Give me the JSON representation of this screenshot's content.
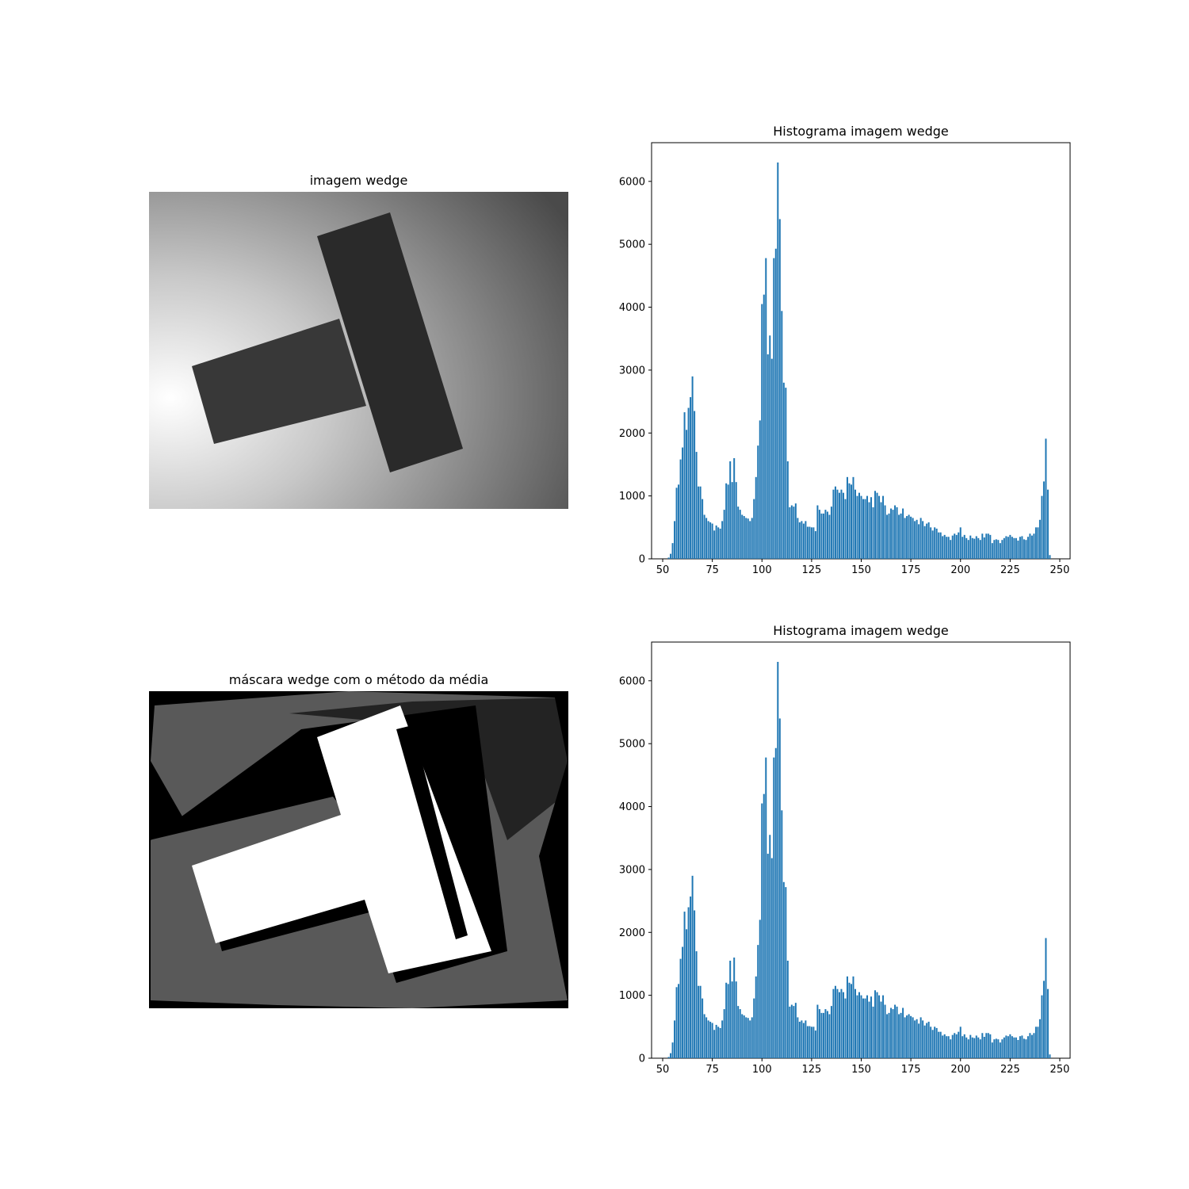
{
  "chart_data": [
    {
      "type": "image",
      "title": "imagem wedge"
    },
    {
      "type": "bar",
      "title": "Histograma imagem wedge",
      "color": "#1f77b4",
      "x": [
        53,
        54,
        55,
        56,
        57,
        58,
        59,
        60,
        61,
        62,
        63,
        64,
        65,
        66,
        67,
        68,
        69,
        70,
        71,
        72,
        73,
        74,
        75,
        76,
        77,
        78,
        79,
        80,
        81,
        82,
        83,
        84,
        85,
        86,
        87,
        88,
        89,
        90,
        91,
        92,
        93,
        94,
        95,
        96,
        97,
        98,
        99,
        100,
        101,
        102,
        103,
        104,
        105,
        106,
        107,
        108,
        109,
        110,
        111,
        112,
        113,
        114,
        115,
        116,
        117,
        118,
        119,
        120,
        121,
        122,
        123,
        124,
        125,
        126,
        127,
        128,
        129,
        130,
        131,
        132,
        133,
        134,
        135,
        136,
        137,
        138,
        139,
        140,
        141,
        142,
        143,
        144,
        145,
        146,
        147,
        148,
        149,
        150,
        151,
        152,
        153,
        154,
        155,
        156,
        157,
        158,
        159,
        160,
        161,
        162,
        163,
        164,
        165,
        166,
        167,
        168,
        169,
        170,
        171,
        172,
        173,
        174,
        175,
        176,
        177,
        178,
        179,
        180,
        181,
        182,
        183,
        184,
        185,
        186,
        187,
        188,
        189,
        190,
        191,
        192,
        193,
        194,
        195,
        196,
        197,
        198,
        199,
        200,
        201,
        202,
        203,
        204,
        205,
        206,
        207,
        208,
        209,
        210,
        211,
        212,
        213,
        214,
        215,
        216,
        217,
        218,
        219,
        220,
        221,
        222,
        223,
        224,
        225,
        226,
        227,
        228,
        229,
        230,
        231,
        232,
        233,
        234,
        235,
        236,
        237,
        238,
        239,
        240,
        241,
        242,
        243,
        244,
        245
      ],
      "values": [
        20,
        80,
        250,
        600,
        1130,
        1180,
        1580,
        1770,
        2330,
        2050,
        2400,
        2570,
        2900,
        2350,
        1700,
        1150,
        1150,
        950,
        700,
        650,
        600,
        580,
        560,
        450,
        530,
        500,
        480,
        600,
        780,
        1200,
        1180,
        1550,
        1220,
        1600,
        1220,
        830,
        780,
        700,
        680,
        650,
        640,
        600,
        650,
        950,
        1300,
        1800,
        2200,
        4050,
        4200,
        4780,
        3250,
        3550,
        3180,
        4780,
        4930,
        6300,
        5400,
        3940,
        2800,
        2720,
        1550,
        820,
        850,
        830,
        880,
        650,
        580,
        600,
        560,
        600,
        510,
        510,
        500,
        500,
        440,
        850,
        780,
        720,
        720,
        780,
        750,
        700,
        830,
        1100,
        1150,
        1100,
        1050,
        1100,
        1050,
        950,
        1300,
        1200,
        1180,
        1300,
        1100,
        1000,
        1050,
        1000,
        950,
        950,
        1000,
        900,
        980,
        820,
        1080,
        1050,
        1000,
        900,
        1000,
        850,
        700,
        720,
        800,
        780,
        850,
        820,
        700,
        720,
        800,
        650,
        680,
        700,
        670,
        650,
        600,
        620,
        550,
        650,
        600,
        520,
        560,
        580,
        500,
        450,
        500,
        480,
        420,
        420,
        360,
        380,
        350,
        350,
        300,
        370,
        400,
        380,
        420,
        500,
        350,
        380,
        330,
        300,
        370,
        330,
        320,
        360,
        330,
        300,
        400,
        340,
        400,
        400,
        380,
        250,
        300,
        310,
        300,
        250,
        300,
        330,
        360,
        350,
        380,
        350,
        330,
        330,
        290,
        350,
        360,
        310,
        300,
        350,
        400,
        370,
        400,
        500,
        500,
        620,
        1000,
        1230,
        1910,
        1100,
        60
      ],
      "xlim": [
        44.4,
        255.2
      ],
      "xticks": [
        50,
        75,
        100,
        125,
        150,
        175,
        200,
        225,
        250
      ],
      "ylim": [
        0,
        6615
      ],
      "yticks": [
        0,
        1000,
        2000,
        3000,
        4000,
        5000,
        6000
      ]
    },
    {
      "type": "image",
      "title": "máscara wedge com o método da média"
    },
    {
      "type": "bar",
      "title": "Histograma imagem wedge",
      "color": "#1f77b4",
      "x": [
        53,
        54,
        55,
        56,
        57,
        58,
        59,
        60,
        61,
        62,
        63,
        64,
        65,
        66,
        67,
        68,
        69,
        70,
        71,
        72,
        73,
        74,
        75,
        76,
        77,
        78,
        79,
        80,
        81,
        82,
        83,
        84,
        85,
        86,
        87,
        88,
        89,
        90,
        91,
        92,
        93,
        94,
        95,
        96,
        97,
        98,
        99,
        100,
        101,
        102,
        103,
        104,
        105,
        106,
        107,
        108,
        109,
        110,
        111,
        112,
        113,
        114,
        115,
        116,
        117,
        118,
        119,
        120,
        121,
        122,
        123,
        124,
        125,
        126,
        127,
        128,
        129,
        130,
        131,
        132,
        133,
        134,
        135,
        136,
        137,
        138,
        139,
        140,
        141,
        142,
        143,
        144,
        145,
        146,
        147,
        148,
        149,
        150,
        151,
        152,
        153,
        154,
        155,
        156,
        157,
        158,
        159,
        160,
        161,
        162,
        163,
        164,
        165,
        166,
        167,
        168,
        169,
        170,
        171,
        172,
        173,
        174,
        175,
        176,
        177,
        178,
        179,
        180,
        181,
        182,
        183,
        184,
        185,
        186,
        187,
        188,
        189,
        190,
        191,
        192,
        193,
        194,
        195,
        196,
        197,
        198,
        199,
        200,
        201,
        202,
        203,
        204,
        205,
        206,
        207,
        208,
        209,
        210,
        211,
        212,
        213,
        214,
        215,
        216,
        217,
        218,
        219,
        220,
        221,
        222,
        223,
        224,
        225,
        226,
        227,
        228,
        229,
        230,
        231,
        232,
        233,
        234,
        235,
        236,
        237,
        238,
        239,
        240,
        241,
        242,
        243,
        244,
        245
      ],
      "values": [
        20,
        80,
        250,
        600,
        1130,
        1180,
        1580,
        1770,
        2330,
        2050,
        2400,
        2570,
        2900,
        2350,
        1700,
        1150,
        1150,
        950,
        700,
        650,
        600,
        580,
        560,
        450,
        530,
        500,
        480,
        600,
        780,
        1200,
        1180,
        1550,
        1220,
        1600,
        1220,
        830,
        780,
        700,
        680,
        650,
        640,
        600,
        650,
        950,
        1300,
        1800,
        2200,
        4050,
        4200,
        4780,
        3250,
        3550,
        3180,
        4780,
        4930,
        6300,
        5400,
        3940,
        2800,
        2720,
        1550,
        820,
        850,
        830,
        880,
        650,
        580,
        600,
        560,
        600,
        510,
        510,
        500,
        500,
        440,
        850,
        780,
        720,
        720,
        780,
        750,
        700,
        830,
        1100,
        1150,
        1100,
        1050,
        1100,
        1050,
        950,
        1300,
        1200,
        1180,
        1300,
        1100,
        1000,
        1050,
        1000,
        950,
        950,
        1000,
        900,
        980,
        820,
        1080,
        1050,
        1000,
        900,
        1000,
        850,
        700,
        720,
        800,
        780,
        850,
        820,
        700,
        720,
        800,
        650,
        680,
        700,
        670,
        650,
        600,
        620,
        550,
        650,
        600,
        520,
        560,
        580,
        500,
        450,
        500,
        480,
        420,
        420,
        360,
        380,
        350,
        350,
        300,
        370,
        400,
        380,
        420,
        500,
        350,
        380,
        330,
        300,
        370,
        330,
        320,
        360,
        330,
        300,
        400,
        340,
        400,
        400,
        380,
        250,
        300,
        310,
        300,
        250,
        300,
        330,
        360,
        350,
        380,
        350,
        330,
        330,
        290,
        350,
        360,
        310,
        300,
        350,
        400,
        370,
        400,
        500,
        500,
        620,
        1000,
        1230,
        1910,
        1100,
        60
      ],
      "xlim": [
        44.4,
        255.2
      ],
      "xticks": [
        50,
        75,
        100,
        125,
        150,
        175,
        200,
        225,
        250
      ],
      "ylim": [
        0,
        6615
      ],
      "yticks": [
        0,
        1000,
        2000,
        3000,
        4000,
        5000,
        6000
      ]
    }
  ]
}
